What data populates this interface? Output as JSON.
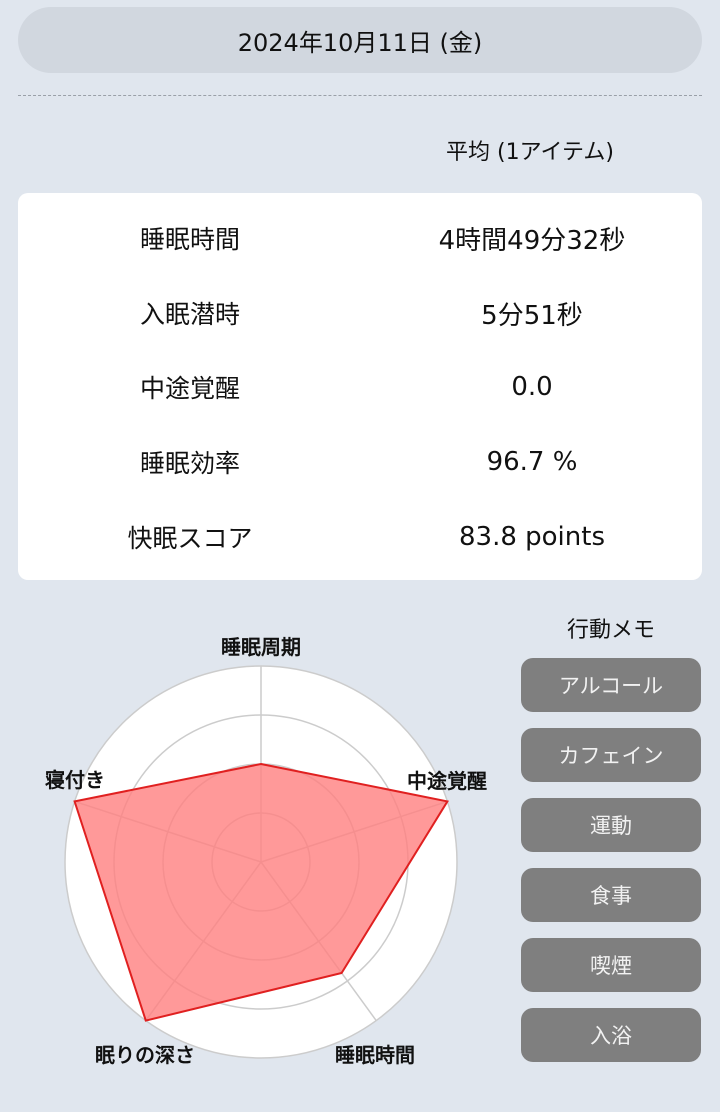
{
  "header": {
    "date": "2024年10月11日 (金)"
  },
  "summary": {
    "caption": "平均 (1アイテム)",
    "rows": [
      {
        "label": "睡眠時間",
        "value": "4時間49分32秒"
      },
      {
        "label": "入眠潜時",
        "value": "5分51秒"
      },
      {
        "label": "中途覚醒",
        "value": "0.0"
      },
      {
        "label": "睡眠効率",
        "value": "96.7 %"
      },
      {
        "label": "快眠スコア",
        "value": "83.8 points"
      }
    ]
  },
  "memo": {
    "title": "行動メモ",
    "buttons": [
      "アルコール",
      "カフェイン",
      "運動",
      "食事",
      "喫煙",
      "入浴"
    ]
  },
  "chart_data": {
    "type": "radar",
    "axes": [
      "睡眠周期",
      "中途覚醒",
      "睡眠時間",
      "眠りの深さ",
      "寝付き"
    ],
    "values": [
      50,
      100,
      70,
      100,
      100
    ],
    "rmax": 100,
    "rings": 4,
    "fill": "#ff8080",
    "stroke": "#e02020"
  }
}
